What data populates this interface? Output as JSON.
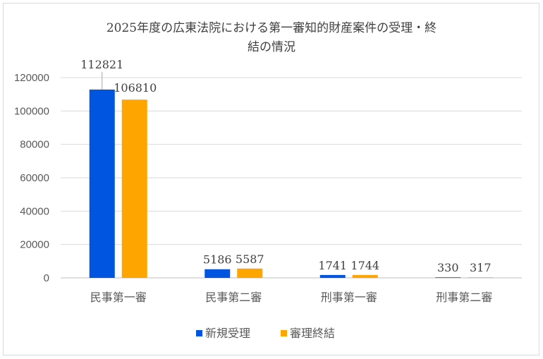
{
  "chart_data": {
    "type": "bar",
    "title": "2025年度の広東法院における第一審知的財産案件の受理・終結の情況",
    "title_lines": [
      "2025年度の広東法院における第一審知的財産案件の受理・終",
      "結の情況"
    ],
    "categories": [
      "民事第一審",
      "民事第二審",
      "刑事第一審",
      "刑事第二審"
    ],
    "series": [
      {
        "name": "新規受理",
        "values": [
          112821,
          5186,
          1741,
          330
        ],
        "color": "#0055e0"
      },
      {
        "name": "審理終結",
        "values": [
          106810,
          5587,
          1744,
          317
        ],
        "color": "#ffa500"
      }
    ],
    "ylim": [
      0,
      120000
    ],
    "yticks": [
      0,
      20000,
      40000,
      60000,
      80000,
      100000,
      120000
    ],
    "xlabel": "",
    "ylabel": "",
    "grid": true,
    "legend": "bottom",
    "data_labels": true
  }
}
